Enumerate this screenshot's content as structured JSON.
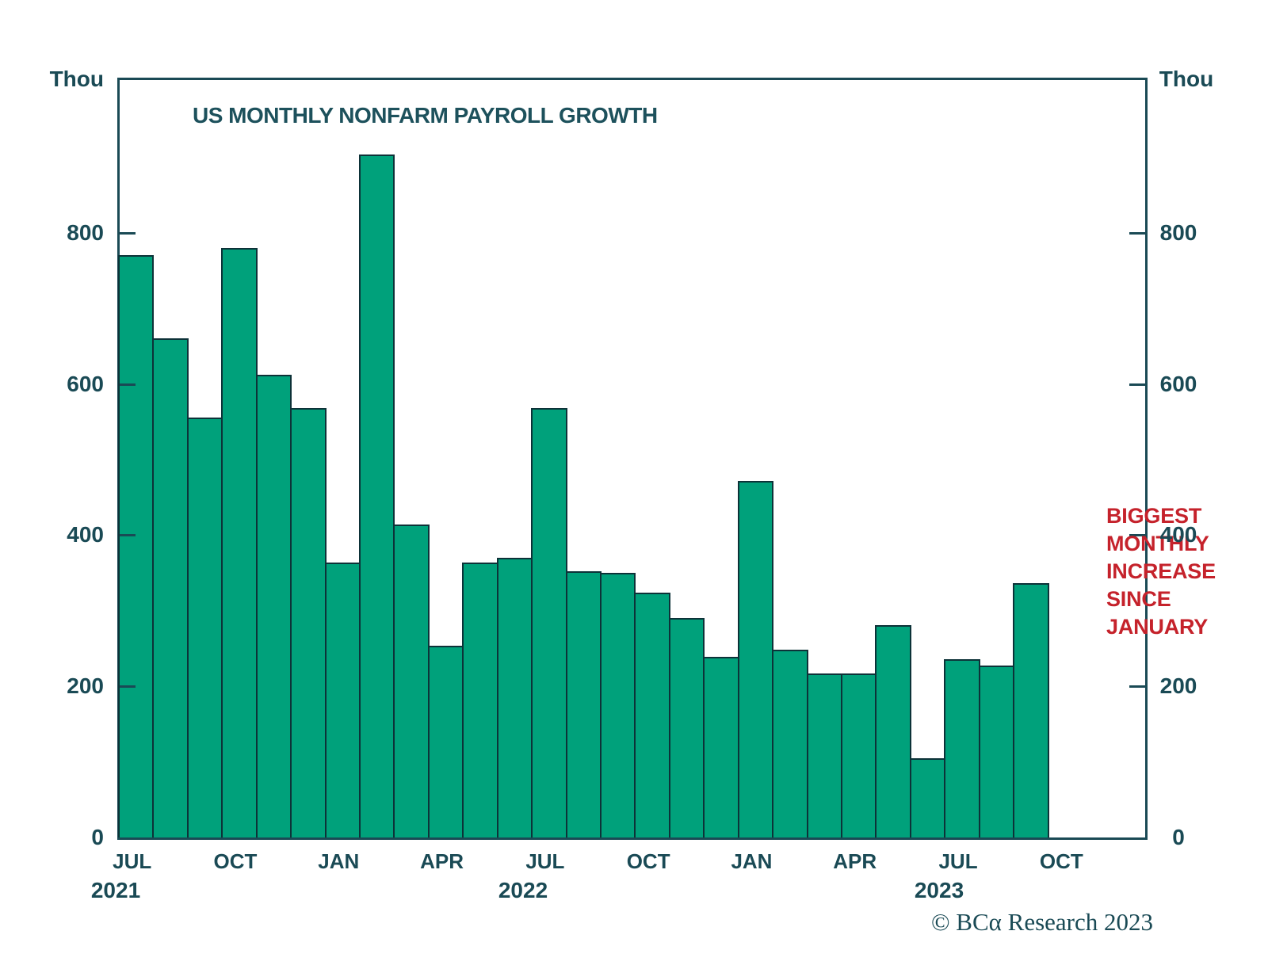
{
  "title": "US MONTHLY NONFARM PAYROLL GROWTH",
  "y_axis": {
    "unit_label": "Thou",
    "ticks": [
      800,
      600,
      400,
      200,
      0
    ]
  },
  "x_axis": {
    "month_ticks": [
      {
        "label": "JUL",
        "bar_index": 0
      },
      {
        "label": "OCT",
        "bar_index": 3
      },
      {
        "label": "JAN",
        "bar_index": 6
      },
      {
        "label": "APR",
        "bar_index": 9
      },
      {
        "label": "JUL",
        "bar_index": 12
      },
      {
        "label": "OCT",
        "bar_index": 15
      },
      {
        "label": "JAN",
        "bar_index": 18
      },
      {
        "label": "APR",
        "bar_index": 21
      },
      {
        "label": "JUL",
        "bar_index": 24
      },
      {
        "label": "OCT",
        "bar_index": 27
      }
    ],
    "year_labels": [
      {
        "label": "2021",
        "x": 146
      },
      {
        "label": "2022",
        "x": 660
      },
      {
        "label": "2023",
        "x": 1185
      }
    ]
  },
  "annotation": {
    "lines": [
      "BIGGEST",
      "MONTHLY",
      "INCREASE",
      "SINCE",
      "JANUARY"
    ]
  },
  "copyright": "© BCα Research 2023",
  "colors": {
    "bar_fill": "#00a17b",
    "bar_border": "#0d3238",
    "axis": "#1a4a55",
    "text": "#1a4a55",
    "annotation_red": "#c5222b",
    "background": "#ffffff"
  },
  "chart_data": {
    "type": "bar",
    "categories": [
      "Jul 2021",
      "Aug 2021",
      "Sep 2021",
      "Oct 2021",
      "Nov 2021",
      "Dec 2021",
      "Jan 2022",
      "Feb 2022",
      "Mar 2022",
      "Apr 2022",
      "May 2022",
      "Jun 2022",
      "Jul 2022",
      "Aug 2022",
      "Sep 2022",
      "Oct 2022",
      "Nov 2022",
      "Dec 2022",
      "Jan 2023",
      "Feb 2023",
      "Mar 2023",
      "Apr 2023",
      "May 2023",
      "Jun 2023",
      "Jul 2023",
      "Aug 2023",
      "Sep 2023"
    ],
    "values": [
      770,
      660,
      555,
      780,
      612,
      568,
      364,
      904,
      414,
      254,
      364,
      370,
      568,
      352,
      350,
      324,
      290,
      239,
      472,
      248,
      217,
      217,
      281,
      105,
      236,
      227,
      336
    ],
    "title": "US MONTHLY NONFARM PAYROLL GROWTH",
    "xlabel": "",
    "ylabel": "Thou",
    "ylim": [
      0,
      1000
    ],
    "unit": "thousands of jobs",
    "legend": "none",
    "grid": false
  }
}
